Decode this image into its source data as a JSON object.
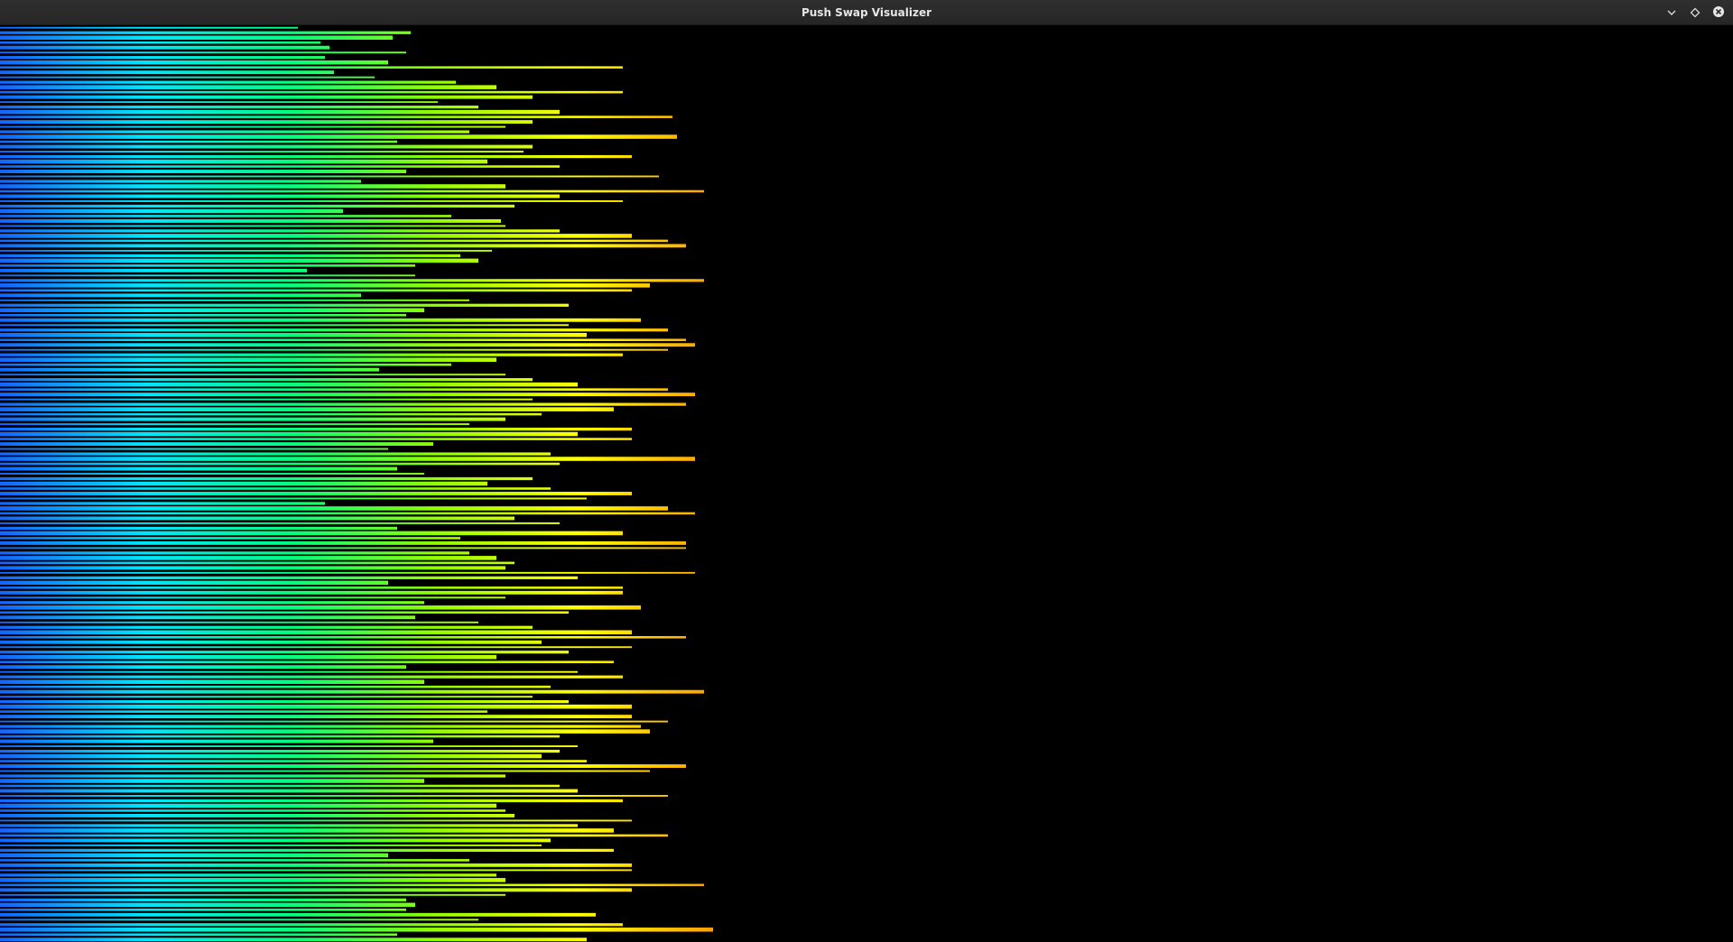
{
  "window": {
    "title": "Push Swap Visualizer",
    "icons": {
      "minimize": "chevron-down-icon",
      "maximize": "diamond-icon",
      "close": "close-circle-icon"
    }
  },
  "visualization": {
    "background": "#000000",
    "color_scale": [
      "#1565ff",
      "#00e5ff",
      "#00ff80",
      "#90ff00",
      "#ffff00",
      "#ff9900",
      "#ff2200"
    ],
    "bar_values": [
      330,
      455,
      435,
      355,
      365,
      450,
      360,
      430,
      690,
      370,
      415,
      505,
      550,
      690,
      590,
      485,
      530,
      620,
      745,
      590,
      560,
      520,
      750,
      440,
      590,
      580,
      700,
      540,
      620,
      450,
      730,
      400,
      560,
      780,
      620,
      690,
      570,
      380,
      500,
      555,
      560,
      620,
      700,
      740,
      760,
      545,
      510,
      530,
      460,
      340,
      460,
      780,
      720,
      700,
      400,
      520,
      630,
      470,
      450,
      710,
      630,
      740,
      650,
      760,
      770,
      740,
      690,
      550,
      500,
      420,
      560,
      590,
      640,
      740,
      770,
      590,
      760,
      680,
      600,
      560,
      520,
      700,
      640,
      700,
      480,
      430,
      610,
      770,
      620,
      440,
      470,
      590,
      540,
      610,
      700,
      650,
      360,
      740,
      770,
      570,
      620,
      440,
      690,
      510,
      760,
      760,
      520,
      550,
      570,
      560,
      770,
      640,
      430,
      690,
      690,
      560,
      470,
      710,
      630,
      460,
      530,
      590,
      700,
      760,
      600,
      700,
      630,
      550,
      680,
      450,
      640,
      690,
      470,
      610,
      780,
      590,
      630,
      700,
      540,
      700,
      740,
      710,
      720,
      620,
      480,
      640,
      620,
      600,
      650,
      760,
      720,
      560,
      470,
      620,
      640,
      740,
      690,
      550,
      560,
      570,
      700,
      640,
      680,
      740,
      610,
      600,
      680,
      430,
      520,
      700,
      700,
      550,
      560,
      780,
      700,
      560,
      450,
      460,
      450,
      660,
      530,
      690,
      790,
      440,
      650
    ]
  }
}
